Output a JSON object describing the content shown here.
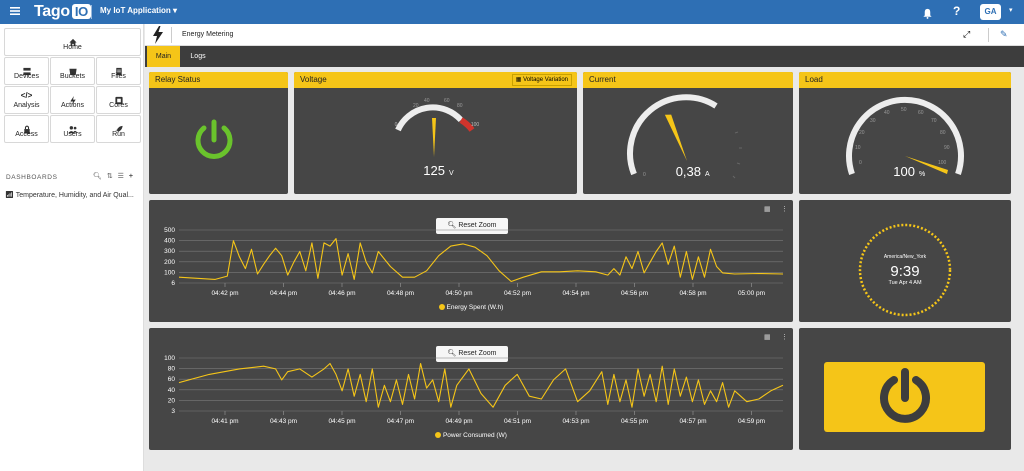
{
  "topbar": {
    "logo": "Tago",
    "logo_io": "IO",
    "app_name": "My IoT Application",
    "avatar": "GA"
  },
  "sidebar": {
    "nav": [
      {
        "label": "Home",
        "icon": "home-icon"
      },
      {
        "label": "Devices",
        "icon": "devices-icon"
      },
      {
        "label": "Buckets",
        "icon": "buckets-icon"
      },
      {
        "label": "Files",
        "icon": "files-icon"
      },
      {
        "label": "Analysis",
        "icon": "code-icon"
      },
      {
        "label": "Actions",
        "icon": "bolt-icon"
      },
      {
        "label": "Cores",
        "icon": "cores-icon"
      },
      {
        "label": "Access",
        "icon": "lock-icon"
      },
      {
        "label": "Users",
        "icon": "users-icon"
      },
      {
        "label": "Run",
        "icon": "rocket-icon"
      }
    ],
    "dashboards_header": "DASHBOARDS",
    "dashboard_item": "Temperature, Humidity, and Air Qual..."
  },
  "device": {
    "title": "Energy Metering"
  },
  "tabs": [
    "Main",
    "Logs"
  ],
  "widgets": {
    "relay": {
      "title": "Relay Status",
      "state": "on"
    },
    "voltage": {
      "title": "Voltage",
      "button": "Voltage Variation",
      "value": "125",
      "unit": "V",
      "min": "0",
      "max": "100",
      "mid_ticks": [
        "20",
        "40",
        "60",
        "80"
      ]
    },
    "current": {
      "title": "Current",
      "value": "0,38",
      "unit": "A",
      "min": "0"
    },
    "load": {
      "title": "Load",
      "value": "100",
      "unit": "%",
      "ticks": [
        "0",
        "10",
        "20",
        "30",
        "40",
        "50",
        "60",
        "70",
        "80",
        "90",
        "100"
      ]
    },
    "clock": {
      "timezone": "America/New_York",
      "time": "9:39",
      "date": "Tue Apr 4 AM"
    },
    "colors": {
      "accent": "#f5c518",
      "panel": "#464646",
      "relay_on": "#6ac32c"
    }
  },
  "reset_zoom": "Reset Zoom",
  "charts": {
    "energy": {
      "legend": "Energy Spent (W.h)",
      "y_ticks": [
        "500",
        "400",
        "300",
        "200",
        "100",
        "6"
      ],
      "x_ticks": [
        "04:42 pm",
        "04:44 pm",
        "04:46 pm",
        "04:48 pm",
        "04:50 pm",
        "04:52 pm",
        "04:54 pm",
        "04:56 pm",
        "04:58 pm",
        "05:00 pm"
      ]
    },
    "power": {
      "legend": "Power Consumed (W)",
      "y_ticks": [
        "100",
        "80",
        "60",
        "40",
        "20",
        "3"
      ],
      "x_ticks": [
        "04:41 pm",
        "04:43 pm",
        "04:45 pm",
        "04:47 pm",
        "04:49 pm",
        "04:51 pm",
        "04:53 pm",
        "04:55 pm",
        "04:57 pm",
        "04:59 pm"
      ]
    }
  },
  "chart_data": [
    {
      "type": "line",
      "legend": "Energy Spent (W.h)",
      "ylim": [
        6,
        500
      ],
      "points": [
        [
          0,
          60
        ],
        [
          3,
          50
        ],
        [
          6,
          40
        ],
        [
          8,
          70
        ],
        [
          9,
          400
        ],
        [
          10,
          250
        ],
        [
          11,
          140
        ],
        [
          12,
          320
        ],
        [
          13,
          90
        ],
        [
          14,
          180
        ],
        [
          15,
          260
        ],
        [
          16,
          330
        ],
        [
          17,
          260
        ],
        [
          18,
          80
        ],
        [
          19,
          200
        ],
        [
          20,
          300
        ],
        [
          21,
          120
        ],
        [
          22,
          380
        ],
        [
          23,
          50
        ],
        [
          24,
          380
        ],
        [
          25,
          350
        ],
        [
          26,
          420
        ],
        [
          27,
          80
        ],
        [
          28,
          280
        ],
        [
          29,
          40
        ],
        [
          30,
          380
        ],
        [
          31,
          200
        ],
        [
          32,
          100
        ],
        [
          33,
          300
        ],
        [
          35,
          160
        ],
        [
          37,
          60
        ],
        [
          39,
          60
        ],
        [
          41,
          120
        ],
        [
          43,
          260
        ],
        [
          45,
          350
        ],
        [
          47,
          370
        ],
        [
          49,
          340
        ],
        [
          51,
          260
        ],
        [
          53,
          120
        ],
        [
          55,
          20
        ],
        [
          57,
          60
        ],
        [
          60,
          110
        ],
        [
          63,
          110
        ],
        [
          66,
          120
        ],
        [
          69,
          110
        ],
        [
          71,
          80
        ],
        [
          72,
          140
        ],
        [
          73,
          80
        ],
        [
          74,
          250
        ],
        [
          75,
          140
        ],
        [
          76,
          300
        ],
        [
          77,
          100
        ],
        [
          78,
          200
        ],
        [
          79,
          300
        ],
        [
          80,
          380
        ],
        [
          81,
          180
        ],
        [
          82,
          350
        ],
        [
          83,
          60
        ],
        [
          84,
          300
        ],
        [
          85,
          40
        ],
        [
          86,
          250
        ],
        [
          87,
          60
        ],
        [
          88,
          320
        ],
        [
          89,
          160
        ],
        [
          90,
          100
        ],
        [
          92,
          90
        ],
        [
          96,
          95
        ],
        [
          100,
          90
        ]
      ]
    },
    {
      "type": "line",
      "legend": "Power Consumed (W)",
      "ylim": [
        3,
        100
      ],
      "points": [
        [
          0,
          55
        ],
        [
          5,
          70
        ],
        [
          10,
          80
        ],
        [
          14,
          85
        ],
        [
          16,
          80
        ],
        [
          17,
          60
        ],
        [
          18,
          75
        ],
        [
          20,
          80
        ],
        [
          22,
          65
        ],
        [
          24,
          80
        ],
        [
          25,
          90
        ],
        [
          26,
          70
        ],
        [
          27,
          40
        ],
        [
          28,
          80
        ],
        [
          29,
          30
        ],
        [
          30,
          70
        ],
        [
          31,
          20
        ],
        [
          32,
          80
        ],
        [
          33,
          10
        ],
        [
          34,
          50
        ],
        [
          35,
          20
        ],
        [
          36,
          60
        ],
        [
          37,
          15
        ],
        [
          38,
          70
        ],
        [
          39,
          25
        ],
        [
          40,
          90
        ],
        [
          41,
          45
        ],
        [
          42,
          60
        ],
        [
          43,
          20
        ],
        [
          44,
          80
        ],
        [
          45,
          10
        ],
        [
          46,
          50
        ],
        [
          48,
          80
        ],
        [
          50,
          35
        ],
        [
          52,
          10
        ],
        [
          54,
          50
        ],
        [
          56,
          70
        ],
        [
          58,
          30
        ],
        [
          60,
          25
        ],
        [
          62,
          60
        ],
        [
          64,
          80
        ],
        [
          66,
          20
        ],
        [
          68,
          40
        ],
        [
          70,
          75
        ],
        [
          71,
          15
        ],
        [
          72,
          70
        ],
        [
          73,
          20
        ],
        [
          74,
          60
        ],
        [
          75,
          10
        ],
        [
          76,
          80
        ],
        [
          77,
          30
        ],
        [
          78,
          70
        ],
        [
          79,
          20
        ],
        [
          80,
          85
        ],
        [
          81,
          15
        ],
        [
          82,
          80
        ],
        [
          83,
          30
        ],
        [
          84,
          65
        ],
        [
          85,
          20
        ],
        [
          86,
          60
        ],
        [
          87,
          15
        ],
        [
          88,
          40
        ],
        [
          89,
          20
        ],
        [
          90,
          55
        ],
        [
          91,
          10
        ],
        [
          92,
          40
        ],
        [
          94,
          20
        ],
        [
          96,
          25
        ],
        [
          98,
          40
        ],
        [
          100,
          50
        ]
      ]
    }
  ]
}
